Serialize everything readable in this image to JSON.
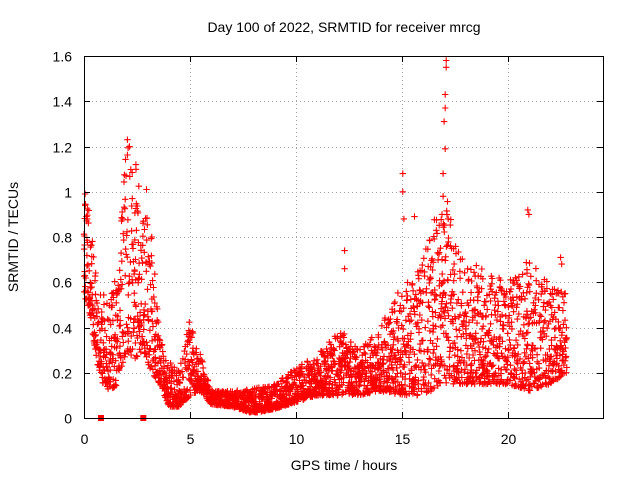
{
  "chart_data": {
    "type": "scatter",
    "title": "Day 100 of 2022, SRMTID for receiver mrcg",
    "xlabel": "GPS time / hours",
    "ylabel": "SRMTID / TECUs",
    "xlim": [
      0,
      24.5
    ],
    "ylim": [
      0,
      1.6
    ],
    "xticks": [
      0,
      5,
      10,
      15,
      20
    ],
    "xtick_labels": [
      "0",
      "5",
      "10",
      "15",
      "20"
    ],
    "yticks": [
      0,
      0.2,
      0.4,
      0.6,
      0.8,
      1.0,
      1.2,
      1.4,
      1.6
    ],
    "ytick_labels": [
      "0",
      "0.2",
      "0.4",
      "0.6",
      "0.8",
      "1",
      "1.2",
      "1.4",
      "1.6"
    ],
    "grid": true,
    "series_color": "#ff0000",
    "marker": "plus",
    "gap_markers_x": [
      0.8,
      2.8
    ],
    "envelope": [
      {
        "t": 0.0,
        "lo": 0.55,
        "hi": 1.0
      },
      {
        "t": 0.3,
        "lo": 0.45,
        "hi": 0.9
      },
      {
        "t": 0.6,
        "lo": 0.25,
        "hi": 0.6
      },
      {
        "t": 0.9,
        "lo": 0.15,
        "hi": 0.55
      },
      {
        "t": 1.2,
        "lo": 0.12,
        "hi": 0.5
      },
      {
        "t": 1.6,
        "lo": 0.15,
        "hi": 0.7
      },
      {
        "t": 2.0,
        "lo": 0.3,
        "hi": 1.23
      },
      {
        "t": 2.4,
        "lo": 0.25,
        "hi": 1.15
      },
      {
        "t": 2.8,
        "lo": 0.3,
        "hi": 1.0
      },
      {
        "t": 3.2,
        "lo": 0.2,
        "hi": 0.8
      },
      {
        "t": 3.6,
        "lo": 0.15,
        "hi": 0.35
      },
      {
        "t": 4.0,
        "lo": 0.05,
        "hi": 0.25
      },
      {
        "t": 4.5,
        "lo": 0.05,
        "hi": 0.22
      },
      {
        "t": 5.0,
        "lo": 0.1,
        "hi": 0.46
      },
      {
        "t": 5.5,
        "lo": 0.12,
        "hi": 0.28
      },
      {
        "t": 6.0,
        "lo": 0.06,
        "hi": 0.12
      },
      {
        "t": 7.0,
        "lo": 0.05,
        "hi": 0.12
      },
      {
        "t": 8.0,
        "lo": 0.02,
        "hi": 0.13
      },
      {
        "t": 9.0,
        "lo": 0.04,
        "hi": 0.15
      },
      {
        "t": 10.0,
        "lo": 0.07,
        "hi": 0.22
      },
      {
        "t": 11.0,
        "lo": 0.1,
        "hi": 0.28
      },
      {
        "t": 12.0,
        "lo": 0.1,
        "hi": 0.4
      },
      {
        "t": 13.0,
        "lo": 0.1,
        "hi": 0.3
      },
      {
        "t": 14.0,
        "lo": 0.12,
        "hi": 0.4
      },
      {
        "t": 15.0,
        "lo": 0.1,
        "hi": 0.6
      },
      {
        "t": 16.0,
        "lo": 0.1,
        "hi": 0.7
      },
      {
        "t": 17.0,
        "lo": 0.15,
        "hi": 1.05
      },
      {
        "t": 18.0,
        "lo": 0.15,
        "hi": 0.7
      },
      {
        "t": 19.0,
        "lo": 0.15,
        "hi": 0.65
      },
      {
        "t": 20.0,
        "lo": 0.15,
        "hi": 0.6
      },
      {
        "t": 21.0,
        "lo": 0.12,
        "hi": 0.7
      },
      {
        "t": 22.0,
        "lo": 0.15,
        "hi": 0.6
      },
      {
        "t": 22.8,
        "lo": 0.2,
        "hi": 0.55
      }
    ],
    "peaks": [
      {
        "x": 0.05,
        "y": 0.99
      },
      {
        "x": 0.15,
        "y": 0.88
      },
      {
        "x": 2.05,
        "y": 1.23
      },
      {
        "x": 2.15,
        "y": 1.2
      },
      {
        "x": 2.45,
        "y": 1.12
      },
      {
        "x": 2.95,
        "y": 1.01
      },
      {
        "x": 3.2,
        "y": 0.8
      },
      {
        "x": 12.3,
        "y": 0.74
      },
      {
        "x": 12.3,
        "y": 0.66
      },
      {
        "x": 15.05,
        "y": 1.08
      },
      {
        "x": 15.05,
        "y": 1.0
      },
      {
        "x": 15.1,
        "y": 0.88
      },
      {
        "x": 15.6,
        "y": 0.89
      },
      {
        "x": 17.1,
        "y": 1.58
      },
      {
        "x": 17.1,
        "y": 1.55
      },
      {
        "x": 17.05,
        "y": 1.43
      },
      {
        "x": 17.05,
        "y": 1.37
      },
      {
        "x": 17.0,
        "y": 1.31
      },
      {
        "x": 17.05,
        "y": 1.19
      },
      {
        "x": 16.95,
        "y": 1.08
      },
      {
        "x": 16.95,
        "y": 0.98
      },
      {
        "x": 16.9,
        "y": 0.9
      },
      {
        "x": 20.95,
        "y": 0.92
      },
      {
        "x": 21.0,
        "y": 0.9
      },
      {
        "x": 22.5,
        "y": 0.71
      },
      {
        "x": 22.55,
        "y": 0.68
      }
    ]
  }
}
